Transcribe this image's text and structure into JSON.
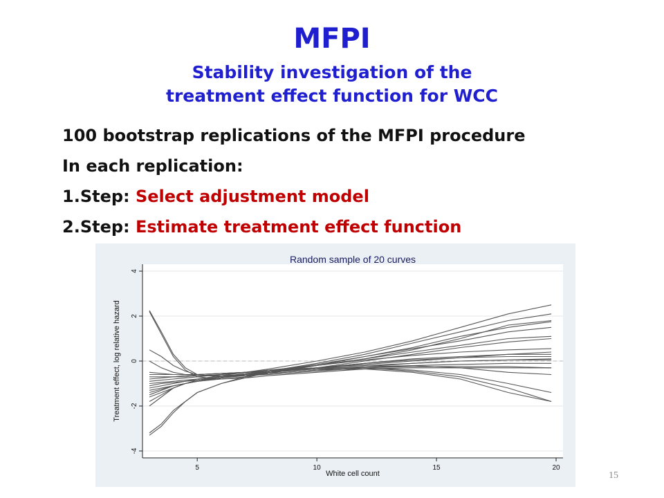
{
  "slide": {
    "title": "MFPI",
    "subtitle_lines": [
      "Stability investigation of the",
      "treatment effect function for WCC"
    ],
    "lines": [
      {
        "text": "100 bootstrap replications of the MFPI procedure",
        "highlight": ""
      },
      {
        "text": "In each replication:",
        "highlight": ""
      },
      {
        "text": "1.Step: ",
        "highlight": "Select adjustment model"
      },
      {
        "text": "2.Step: ",
        "highlight": "Estimate treatment effect function"
      }
    ],
    "page_number": "15"
  },
  "colors": {
    "title": "#1f1fd0",
    "highlight": "#c00000",
    "chart_background": "#eaf0f4",
    "curve": "#555555"
  },
  "chart_data": {
    "type": "line",
    "title": "Random sample of 20 curves",
    "xlabel": "White cell count",
    "ylabel": "Treatment effect, log relative hazard",
    "xlim": [
      3,
      20
    ],
    "ylim": [
      -4,
      4
    ],
    "xticks": [
      5,
      10,
      15,
      20
    ],
    "yticks": [
      -4,
      -2,
      0,
      2,
      4
    ],
    "grid": true,
    "reference_line_y": 0,
    "x": [
      3,
      3.5,
      4,
      4.5,
      5,
      6,
      7,
      8,
      10,
      12,
      14,
      16,
      18,
      19.8
    ],
    "series": [
      {
        "values": [
          2.2,
          1.2,
          0.2,
          -0.4,
          -0.7,
          -0.8,
          -0.75,
          -0.65,
          -0.5,
          -0.35,
          -0.3,
          -0.3,
          -0.3,
          -0.3
        ]
      },
      {
        "values": [
          2.25,
          1.3,
          0.3,
          -0.3,
          -0.6,
          -0.7,
          -0.65,
          -0.6,
          -0.45,
          -0.3,
          -0.2,
          -0.15,
          -0.1,
          -0.1
        ]
      },
      {
        "values": [
          -3.2,
          -2.8,
          -2.2,
          -1.8,
          -1.4,
          -1.0,
          -0.75,
          -0.5,
          -0.2,
          0.1,
          0.4,
          0.7,
          1.0,
          1.1
        ]
      },
      {
        "values": [
          -3.3,
          -2.9,
          -2.3,
          -1.8,
          -1.4,
          -1.0,
          -0.7,
          -0.45,
          -0.1,
          0.3,
          0.8,
          1.3,
          1.8,
          2.1
        ]
      },
      {
        "values": [
          -2.0,
          -1.6,
          -1.2,
          -1.0,
          -0.9,
          -0.8,
          -0.7,
          -0.55,
          -0.2,
          0.2,
          0.6,
          1.1,
          1.5,
          1.75
        ]
      },
      {
        "values": [
          0.0,
          -0.3,
          -0.5,
          -0.6,
          -0.65,
          -0.65,
          -0.6,
          -0.55,
          -0.4,
          -0.25,
          -0.1,
          0.0,
          0.05,
          0.1
        ]
      },
      {
        "values": [
          0.5,
          0.2,
          -0.2,
          -0.45,
          -0.6,
          -0.7,
          -0.65,
          -0.5,
          -0.3,
          0.0,
          0.3,
          0.6,
          0.85,
          1.0
        ]
      },
      {
        "values": [
          -0.9,
          -0.85,
          -0.8,
          -0.75,
          -0.7,
          -0.6,
          -0.5,
          -0.4,
          -0.2,
          0.1,
          0.5,
          1.0,
          1.6,
          1.8
        ]
      },
      {
        "values": [
          -1.2,
          -1.1,
          -1.0,
          -0.9,
          -0.8,
          -0.65,
          -0.5,
          -0.35,
          0.0,
          0.4,
          0.9,
          1.5,
          2.1,
          2.5
        ]
      },
      {
        "values": [
          -1.5,
          -1.3,
          -1.1,
          -1.0,
          -0.9,
          -0.75,
          -0.6,
          -0.45,
          -0.15,
          0.2,
          0.55,
          0.9,
          1.3,
          1.5
        ]
      },
      {
        "values": [
          -1.0,
          -0.95,
          -0.9,
          -0.85,
          -0.8,
          -0.7,
          -0.6,
          -0.5,
          -0.3,
          -0.1,
          0.05,
          0.15,
          0.2,
          0.2
        ]
      },
      {
        "values": [
          -0.6,
          -0.6,
          -0.6,
          -0.6,
          -0.6,
          -0.55,
          -0.5,
          -0.45,
          -0.3,
          -0.2,
          -0.1,
          0.0,
          0.05,
          0.05
        ]
      },
      {
        "values": [
          -1.8,
          -1.5,
          -1.2,
          -1.0,
          -0.9,
          -0.75,
          -0.6,
          -0.5,
          -0.3,
          -0.1,
          0.1,
          0.2,
          0.3,
          0.3
        ]
      },
      {
        "values": [
          -0.8,
          -0.75,
          -0.7,
          -0.65,
          -0.6,
          -0.55,
          -0.5,
          -0.45,
          -0.35,
          -0.3,
          -0.25,
          -0.25,
          -0.25,
          -0.3
        ]
      },
      {
        "values": [
          -1.3,
          -1.2,
          -1.1,
          -1.0,
          -0.9,
          -0.75,
          -0.6,
          -0.5,
          -0.35,
          -0.25,
          -0.2,
          -0.3,
          -0.5,
          -0.6
        ]
      },
      {
        "values": [
          -1.6,
          -1.4,
          -1.2,
          -1.0,
          -0.85,
          -0.7,
          -0.55,
          -0.45,
          -0.3,
          -0.3,
          -0.45,
          -0.7,
          -1.2,
          -1.8
        ]
      },
      {
        "values": [
          -0.7,
          -0.7,
          -0.7,
          -0.7,
          -0.65,
          -0.6,
          -0.5,
          -0.4,
          -0.3,
          -0.3,
          -0.4,
          -0.6,
          -1.0,
          -1.4
        ]
      },
      {
        "values": [
          -1.1,
          -1.0,
          -0.95,
          -0.9,
          -0.85,
          -0.75,
          -0.65,
          -0.55,
          -0.4,
          -0.35,
          -0.5,
          -0.8,
          -1.4,
          -1.8
        ]
      },
      {
        "values": [
          -0.5,
          -0.55,
          -0.6,
          -0.6,
          -0.6,
          -0.55,
          -0.5,
          -0.45,
          -0.3,
          -0.15,
          0.0,
          0.15,
          0.3,
          0.4
        ]
      },
      {
        "values": [
          -1.4,
          -1.25,
          -1.1,
          -1.0,
          -0.9,
          -0.75,
          -0.6,
          -0.45,
          -0.2,
          0.05,
          0.25,
          0.4,
          0.5,
          0.55
        ]
      }
    ]
  }
}
